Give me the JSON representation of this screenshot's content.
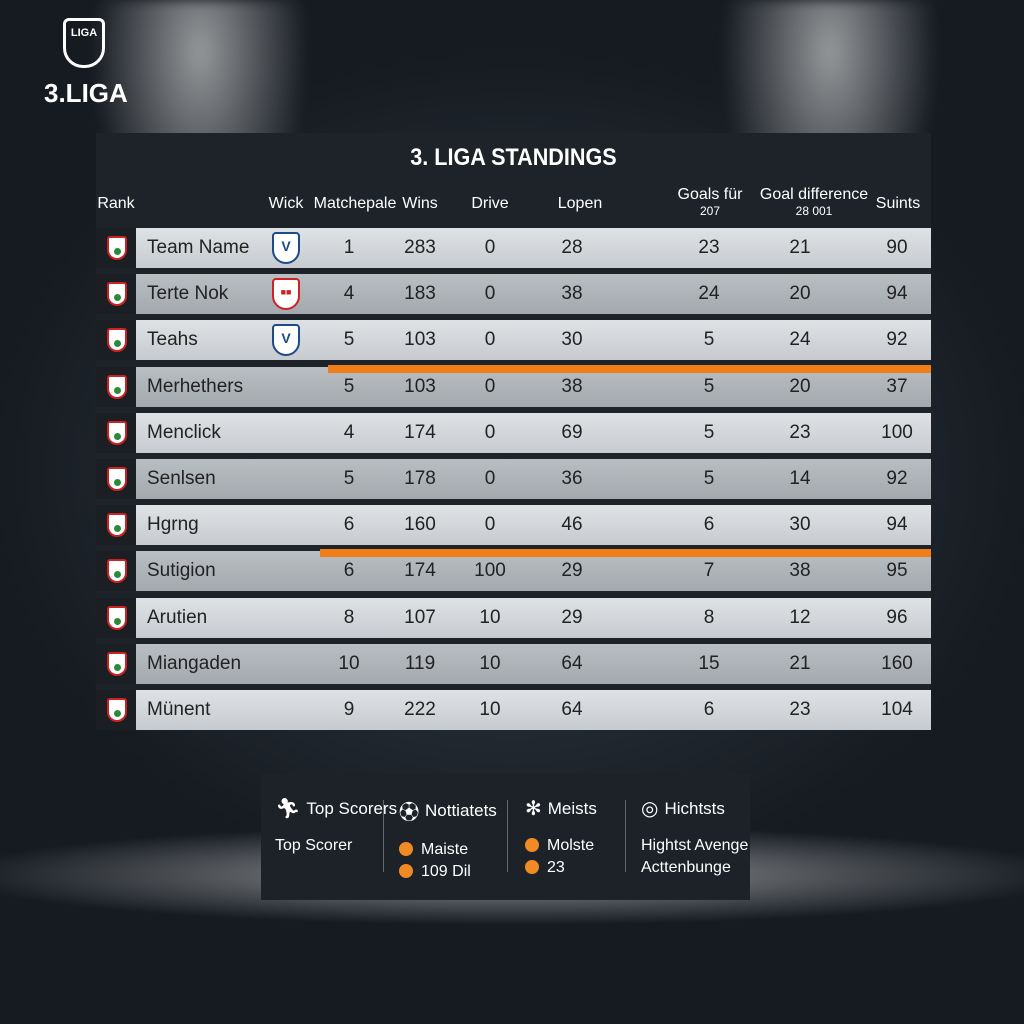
{
  "logo": {
    "badge": "LIGA",
    "name": "3.LIGA"
  },
  "table": {
    "title": "3. LIGA STANDINGS",
    "headers": {
      "rank": "Rank",
      "wick": "Wick",
      "matches": "Matchepale",
      "wins": "Wins",
      "drive": "Drive",
      "lopen": "Lopen",
      "goals": "Goals für",
      "goals_sub": "207",
      "gd": "Goal difference",
      "gd_sub": "28 001",
      "points": "Suints"
    },
    "rows": [
      {
        "team": "Team Name",
        "club": "V",
        "m": "1",
        "w": "283",
        "d": "0",
        "l": "28",
        "g": "23",
        "gd": "21",
        "p": "90"
      },
      {
        "team": "Terte Nok",
        "club": "red",
        "m": "4",
        "w": "183",
        "d": "0",
        "l": "38",
        "g": "24",
        "gd": "20",
        "p": "94"
      },
      {
        "team": "Teahs",
        "club": "V",
        "m": "5",
        "w": "103",
        "d": "0",
        "l": "30",
        "g": "5",
        "gd": "24",
        "p": "92"
      },
      {
        "team": "Merhethers",
        "m": "5",
        "w": "103",
        "d": "0",
        "l": "38",
        "g": "5",
        "gd": "20",
        "p": "37"
      },
      {
        "team": "Menclick",
        "m": "4",
        "w": "174",
        "d": "0",
        "l": "69",
        "g": "5",
        "gd": "23",
        "p": "100"
      },
      {
        "team": "Senlsen",
        "m": "5",
        "w": "178",
        "d": "0",
        "l": "36",
        "g": "5",
        "gd": "14",
        "p": "92"
      },
      {
        "team": "Hgrng",
        "m": "6",
        "w": "160",
        "d": "0",
        "l": "46",
        "g": "6",
        "gd": "30",
        "p": "94"
      },
      {
        "team": "Sutigion",
        "m": "6",
        "w": "174",
        "d": "100",
        "l": "29",
        "g": "7",
        "gd": "38",
        "p": "95"
      },
      {
        "team": "Arutien",
        "m": "8",
        "w": "107",
        "d": "10",
        "l": "29",
        "g": "8",
        "gd": "12",
        "p": "96"
      },
      {
        "team": "Miangaden",
        "m": "10",
        "w": "119",
        "d": "10",
        "l": "64",
        "g": "15",
        "gd": "21",
        "p": "160"
      },
      {
        "team": "Münent",
        "m": "9",
        "w": "222",
        "d": "10",
        "l": "64",
        "g": "6",
        "gd": "23",
        "p": "104"
      }
    ]
  },
  "stats": {
    "top_scorers": {
      "title": "Top Scorers",
      "line1": "Top Scorer",
      "icon": "running-person-icon"
    },
    "notiatets": {
      "title": "Nottiatets",
      "line1": "Maiste",
      "line2": "109 Dil",
      "icon": "soccer-ball-icon"
    },
    "meists": {
      "title": "Meists",
      "line1": "Molste",
      "line2": "23",
      "icon": "asterisk-icon"
    },
    "hichtsts": {
      "title": "Hichtsts",
      "line1": "Hightst Avenge",
      "line2": "Acttenbunge",
      "icon": "camera-icon"
    }
  },
  "colors": {
    "accent": "#f07f1a",
    "panel": "#1d2329"
  }
}
